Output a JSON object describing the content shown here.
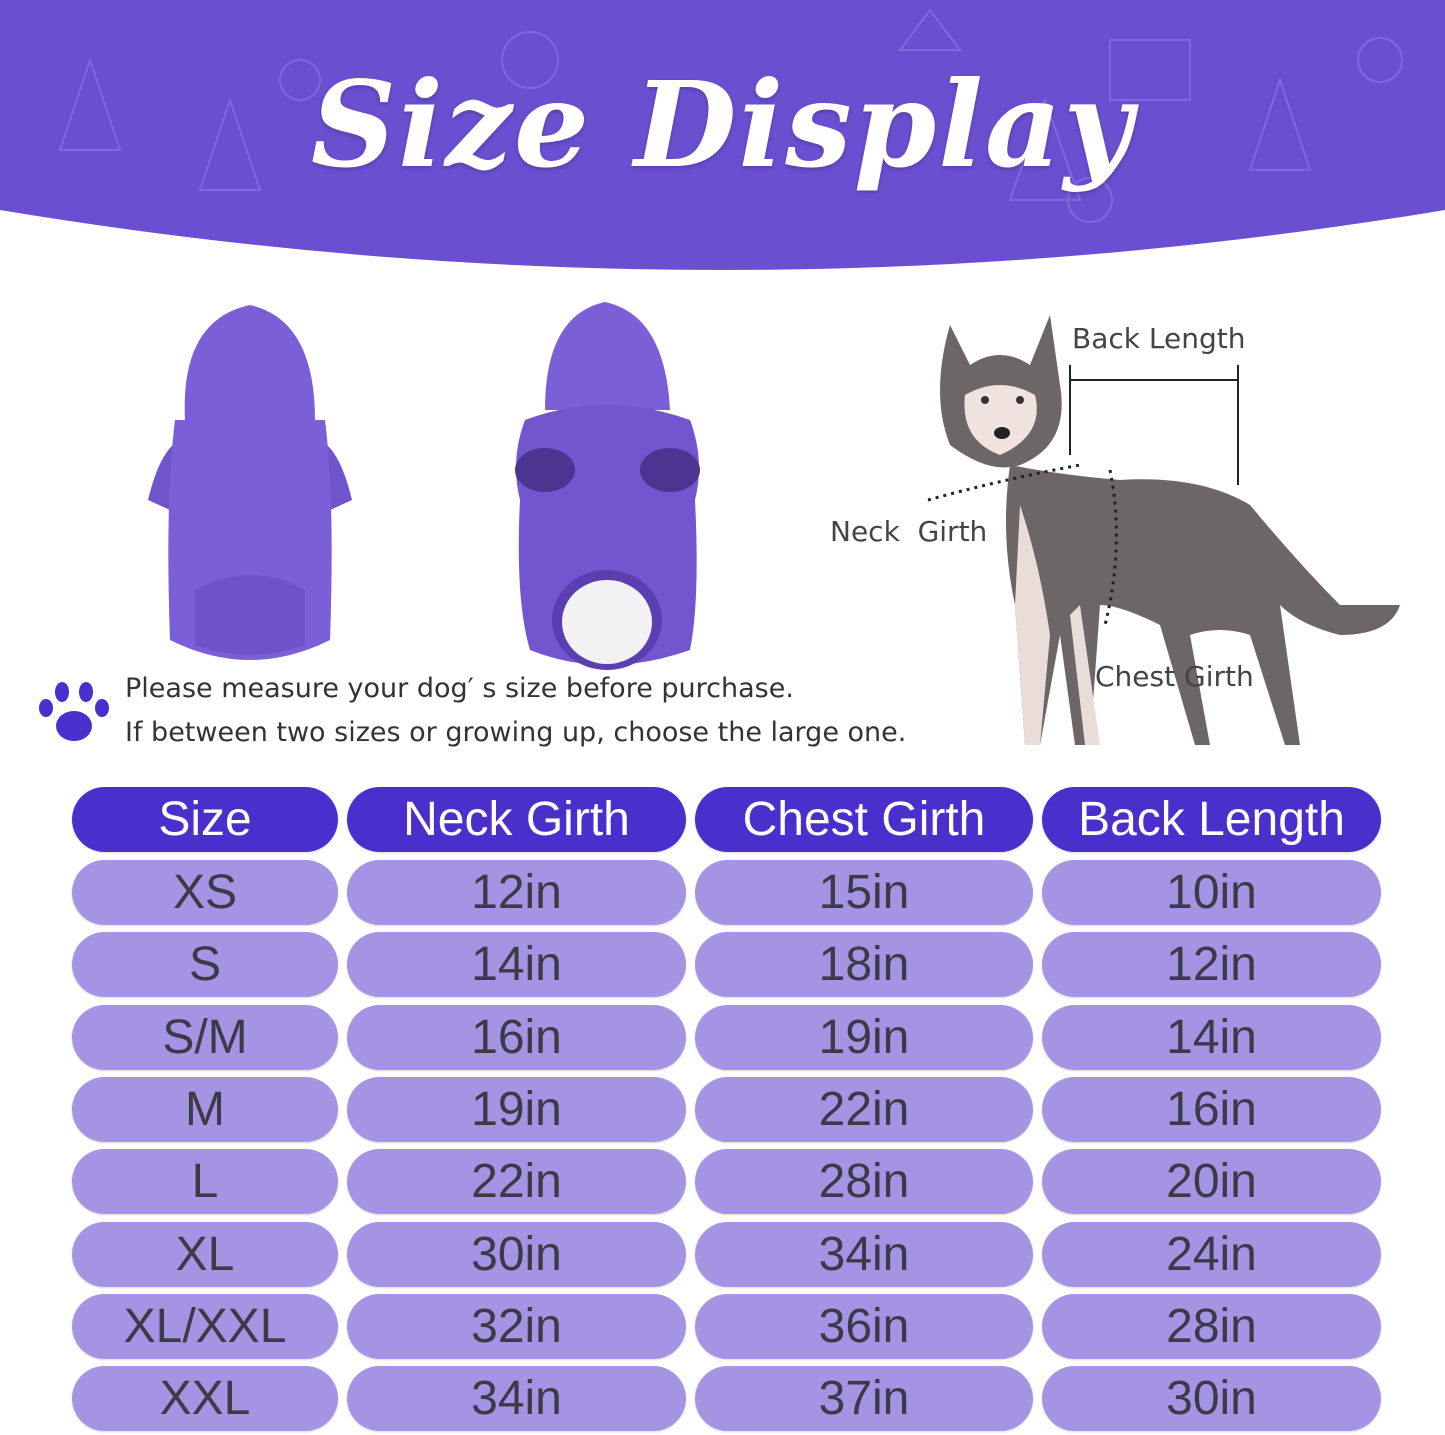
{
  "title": "Size Display",
  "diagram_labels": {
    "back_length": "Back Length",
    "neck_girth": "Neck  Girth",
    "chest_girth": "Chest Girth"
  },
  "notes": [
    "Please measure your dog′ s size before purchase.",
    "If between two sizes or growing up, choose the large one."
  ],
  "colors": {
    "banner": "#6a4fd0",
    "header": "#4a2fcc",
    "cell": "#a594e4",
    "hoodie": "#7b5fd6"
  },
  "table": {
    "headers": [
      "Size",
      "Neck Girth",
      "Chest Girth",
      "Back Length"
    ],
    "rows": [
      [
        "XS",
        "12in",
        "15in",
        "10in"
      ],
      [
        "S",
        "14in",
        "18in",
        "12in"
      ],
      [
        "S/M",
        "16in",
        "19in",
        "14in"
      ],
      [
        "M",
        "19in",
        "22in",
        "16in"
      ],
      [
        "L",
        "22in",
        "28in",
        "20in"
      ],
      [
        "XL",
        "30in",
        "34in",
        "24in"
      ],
      [
        "XL/XXL",
        "32in",
        "36in",
        "28in"
      ],
      [
        "XXL",
        "34in",
        "37in",
        "30in"
      ]
    ]
  }
}
